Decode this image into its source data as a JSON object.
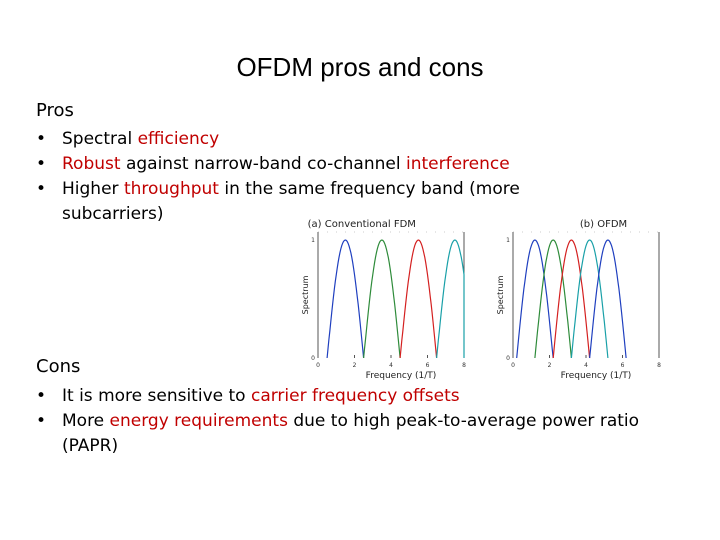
{
  "slide": {
    "title": "OFDM pros and cons",
    "pros_heading": "Pros",
    "cons_heading": "Cons",
    "pros": [
      {
        "pre": "Spectral ",
        "hl": "efficiency",
        "post": ""
      },
      {
        "pre": "",
        "hl": "Robust",
        "post": " against narrow-band co-channel ",
        "hl2": "interference"
      },
      {
        "pre": "Higher ",
        "hl": "throughput",
        "post": " in the same frequency band (more subcarriers)"
      }
    ],
    "cons": [
      {
        "pre": "It is more sensitive to ",
        "hl": "carrier frequency offsets",
        "post": ""
      },
      {
        "pre": "More ",
        "hl": "energy requirements",
        "post": " due to high peak-to-average power ratio (PAPR)"
      }
    ],
    "accent_color": "#c00000"
  },
  "chart_data": [
    {
      "type": "line",
      "title": "(a) Conventional FDM",
      "xlabel": "Frequency (1/T)",
      "ylabel": "Spectrum",
      "xlim": [
        0,
        8
      ],
      "ylim": [
        0,
        1
      ],
      "x_ticks": [
        "0",
        "2",
        "4",
        "6",
        "8"
      ],
      "y_ticks": [
        "0",
        "1"
      ],
      "series_colors": [
        "#1f3fbf",
        "#2e8b3a",
        "#d42020",
        "#19a0a8"
      ],
      "centers": [
        1.5,
        3.5,
        5.5,
        7.5
      ],
      "half_width": 1
    },
    {
      "type": "line",
      "title": "(b) OFDM",
      "xlabel": "Frequency (1/T)",
      "ylabel": "Spectrum",
      "xlim": [
        0,
        8
      ],
      "ylim": [
        0,
        1
      ],
      "x_ticks": [
        "0",
        "2",
        "4",
        "6",
        "8"
      ],
      "y_ticks": [
        "0",
        "1"
      ],
      "series_colors": [
        "#1f3fbf",
        "#2e8b3a",
        "#d42020",
        "#19a0a8",
        "#1f3fbf"
      ],
      "centers": [
        1.2,
        2.2,
        3.2,
        4.2,
        5.2
      ],
      "half_width": 1
    }
  ]
}
